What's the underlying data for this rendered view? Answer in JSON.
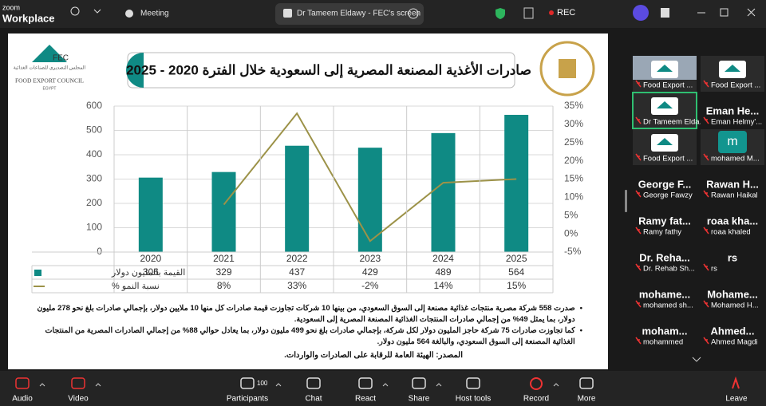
{
  "app": {
    "brand_top": "zoom",
    "brand": "Workplace",
    "tabs": [
      "Meeting",
      "Dr Tameem Eldawy - FEC's screen"
    ],
    "rec": "REC"
  },
  "slide": {
    "logo_left": {
      "mark": "FEC",
      "arabic": "المجلس التصديري للصناعات الغذائية",
      "english": "FOOD EXPORT COUNCIL",
      "country": "EGYPT"
    },
    "bullets": [
      "صدرت 558 شركة مصرية منتجات غذائية مصنعة إلى السوق السعودي، من بينها 10 شركات تجاوزت قيمة صادرات كل منها 10 ملايين دولار، بإجمالي صادرات بلغ نحو 278 مليون دولار، بما يمثل 49% من إجمالي صادرات المنتجات الغذائية المصنعة المصرية إلى السعودية.",
      "كما تجاوزت صادرات 75 شركة حاجز المليون دولار لكل شركة، بإجمالي صادرات بلغ نحو 499 مليون دولار، بما يعادل حوالي 88% من إجمالي الصادرات المصرية من المنتجات الغذائية المصنعة إلى السوق السعودي، والبالغة 564 مليون دولار."
    ],
    "source": "المصدر: الهيئة العامة للرقابة على الصادرات والواردات."
  },
  "chart_data": {
    "type": "bar",
    "title": "صادرات الأغذية المصنعة المصرية إلى السعودية خلال الفترة 2020 - 2025",
    "categories": [
      "2020",
      "2021",
      "2022",
      "2023",
      "2024",
      "2025"
    ],
    "series": [
      {
        "name": "القيمة بالمليون دولار",
        "color": "#0f8a84",
        "values": [
          306,
          329,
          437,
          429,
          489,
          564
        ]
      },
      {
        "name": "نسبة النمو %",
        "type": "line",
        "axis": "y2",
        "color": "#9c9248",
        "values": [
          null,
          8,
          33,
          -2,
          14,
          15
        ],
        "value_labels": [
          null,
          "8%",
          "33%",
          "-2%",
          "14%",
          "15%"
        ]
      }
    ],
    "ylim": [
      0,
      600
    ],
    "yticks": [
      0,
      100,
      200,
      300,
      400,
      500,
      600
    ],
    "y2lim": [
      -5,
      35
    ],
    "y2ticks": [
      {
        "value": -5,
        "label": "-5%"
      },
      {
        "value": 0,
        "label": "0%"
      },
      {
        "value": 5,
        "label": "5%"
      },
      {
        "value": 10,
        "label": "10%"
      },
      {
        "value": 15,
        "label": "15%"
      },
      {
        "value": 20,
        "label": "20%"
      },
      {
        "value": 25,
        "label": "25%"
      },
      {
        "value": 30,
        "label": "30%"
      },
      {
        "value": 35,
        "label": "35%"
      }
    ],
    "grid": true
  },
  "participants": [
    {
      "label": "Food Export ..."
    },
    {
      "label": "Food Export ..."
    },
    {
      "label": "Dr Tameem Elda..."
    },
    {
      "name": "Eman He...",
      "label": "Eman Helmy'..."
    },
    {
      "label": "Food Export ..."
    },
    {
      "name": "m",
      "label": "mohamed M..."
    },
    {
      "name": "George F...",
      "label": "George Fawzy"
    },
    {
      "name": "Rawan H...",
      "label": "Rawan Haikal"
    },
    {
      "name": "Ramy fat...",
      "label": "Ramy fathy"
    },
    {
      "name": "roaa kha...",
      "label": "roaa khaled"
    },
    {
      "name": "Dr. Reha...",
      "label": "Dr. Rehab Sh..."
    },
    {
      "name": "rs",
      "label": "rs"
    },
    {
      "name": "mohame...",
      "label": "mohamed sh..."
    },
    {
      "name": "Mohame...",
      "label": "Mohamed H..."
    },
    {
      "name": "moham...",
      "label": "mohammed"
    },
    {
      "name": "Ahmed...",
      "label": "Ahmed Magdi"
    }
  ],
  "toolbar": {
    "items": [
      "Audio",
      "Video",
      "Participants",
      "Chat",
      "React",
      "Share",
      "Host tools",
      "Record",
      "More"
    ],
    "participants_count": 100,
    "leave": "Leave"
  }
}
